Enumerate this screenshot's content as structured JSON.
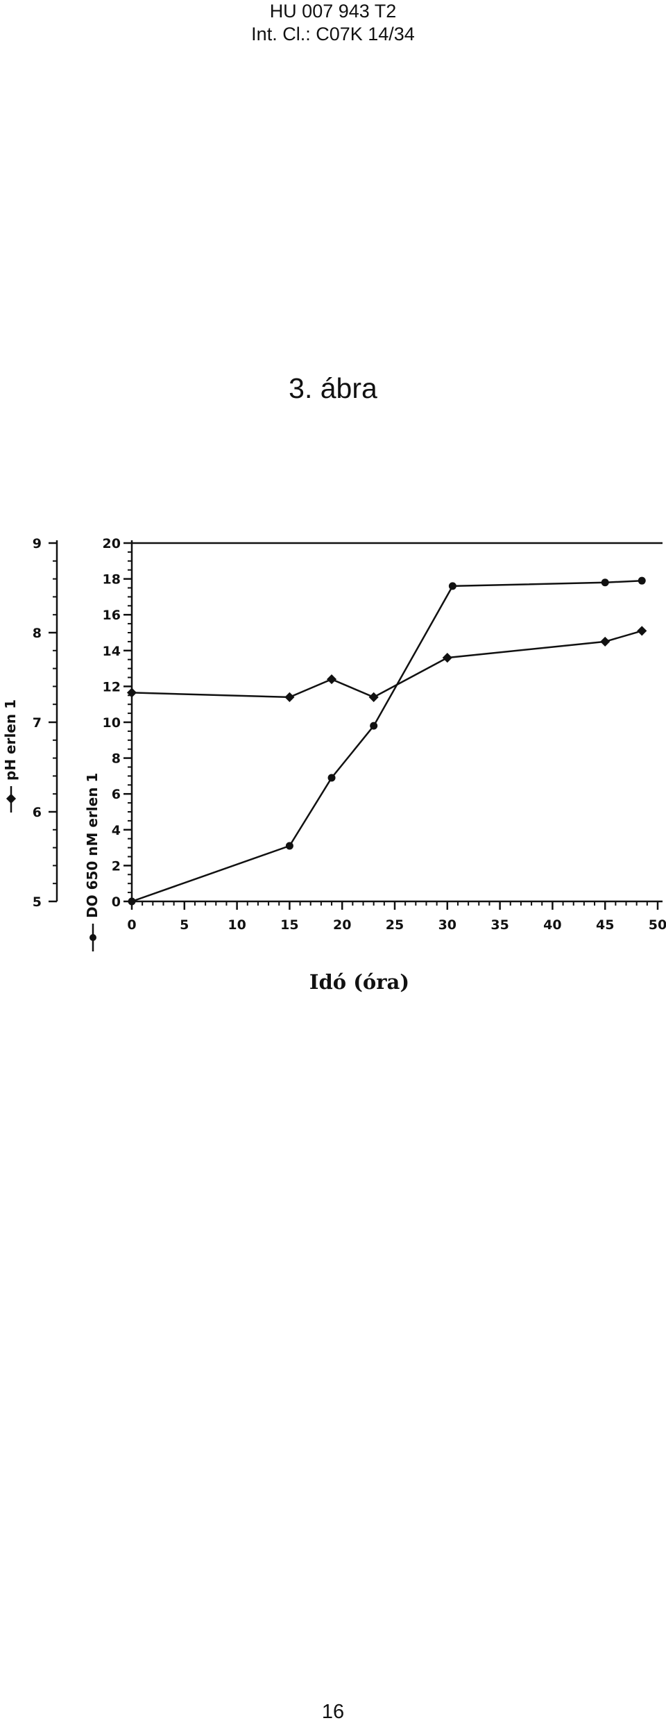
{
  "header": {
    "patent_number": "HU 007 943 T2",
    "classification": "Int. Cl.: C07K 14/34"
  },
  "figure_label": "3. ábra",
  "page_number": "16",
  "chart_data": {
    "type": "line",
    "xlabel": "Idó (óra)",
    "xlim": [
      0,
      50
    ],
    "x_ticks": [
      0,
      5,
      10,
      15,
      20,
      25,
      30,
      35,
      40,
      45,
      50
    ],
    "y_left": {
      "label": "pH erlen 1",
      "lim": [
        5,
        9
      ],
      "ticks": [
        5,
        6,
        7,
        8,
        9
      ]
    },
    "y_right": {
      "label": "DO 650 nM erlen 1",
      "lim": [
        0,
        20
      ],
      "ticks": [
        0,
        2,
        4,
        6,
        8,
        10,
        12,
        14,
        16,
        18,
        20
      ]
    },
    "grid": false,
    "series": [
      {
        "name": "pH erlen 1",
        "axis": "left",
        "marker": "diamond",
        "x": [
          0,
          15,
          19,
          23,
          30,
          45,
          48.5
        ],
        "y": [
          7.33,
          7.28,
          7.48,
          7.28,
          7.72,
          7.9,
          8.02
        ]
      },
      {
        "name": "DO 650 nM erlen 1",
        "axis": "right",
        "marker": "circle",
        "x": [
          0,
          15,
          19,
          23,
          30.5,
          45,
          48.5
        ],
        "y": [
          0,
          3.1,
          6.9,
          9.8,
          17.6,
          17.8,
          17.9
        ]
      }
    ]
  }
}
